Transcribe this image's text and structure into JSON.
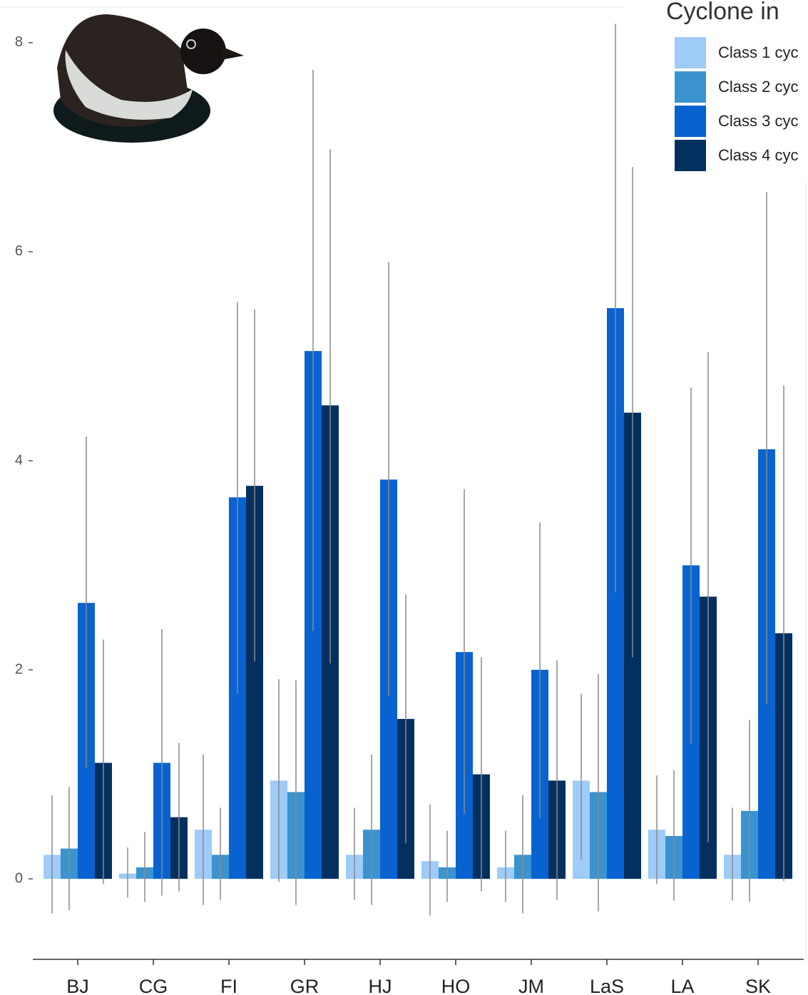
{
  "chart_data": {
    "type": "bar",
    "title": "Cyclone in",
    "categories": [
      "BJ",
      "CG",
      "FI",
      "GR",
      "HJ",
      "HO",
      "JM",
      "LaS",
      "LA",
      "SK"
    ],
    "series": [
      {
        "name": "Class 1 cyc",
        "color": "#9ecbf7",
        "values": [
          0.23,
          0.05,
          0.47,
          0.94,
          0.23,
          0.17,
          0.11,
          0.94,
          0.47,
          0.23
        ],
        "err_low": [
          -0.33,
          -0.18,
          -0.25,
          -0.03,
          -0.2,
          -0.35,
          -0.22,
          0.18,
          -0.05,
          -0.21
        ],
        "err_high": [
          0.8,
          0.3,
          1.19,
          1.91,
          0.68,
          0.71,
          0.46,
          1.77,
          0.99,
          0.68
        ]
      },
      {
        "name": "Class 2 cyc",
        "color": "#3a93cf",
        "values": [
          0.29,
          0.11,
          0.23,
          0.83,
          0.47,
          0.11,
          0.23,
          0.83,
          0.41,
          0.65
        ],
        "err_low": [
          -0.3,
          -0.22,
          -0.2,
          -0.25,
          -0.25,
          -0.22,
          -0.33,
          -0.31,
          -0.21,
          -0.22
        ],
        "err_high": [
          0.88,
          0.45,
          0.68,
          1.9,
          1.19,
          0.46,
          0.8,
          1.96,
          1.04,
          1.52
        ]
      },
      {
        "name": "Class 3 cyc",
        "color": "#0862d0",
        "values": [
          2.64,
          1.11,
          3.65,
          5.05,
          3.82,
          2.17,
          2.0,
          5.46,
          3.0,
          4.11
        ],
        "err_low": [
          1.06,
          -0.16,
          1.77,
          2.37,
          1.75,
          0.62,
          0.58,
          2.74,
          1.29,
          1.67
        ],
        "err_high": [
          4.23,
          2.39,
          5.52,
          7.74,
          5.9,
          3.73,
          3.41,
          8.18,
          4.7,
          6.57
        ]
      },
      {
        "name": "Class 4 cyc",
        "color": "#04305f",
        "values": [
          1.11,
          0.59,
          3.76,
          4.53,
          1.53,
          1.0,
          0.94,
          4.46,
          2.7,
          2.35
        ],
        "err_low": [
          -0.05,
          -0.12,
          2.08,
          2.06,
          0.34,
          -0.12,
          -0.2,
          2.12,
          0.35,
          -0.02
        ],
        "err_high": [
          2.29,
          1.3,
          5.45,
          6.98,
          2.72,
          2.12,
          2.09,
          6.81,
          5.04,
          4.72
        ]
      }
    ],
    "ylim": [
      -0.77,
      8.34
    ],
    "yticks": [
      0,
      2,
      4,
      6,
      8
    ],
    "grid": false,
    "legend": "top-right",
    "error_color": "#8a8a8a"
  }
}
